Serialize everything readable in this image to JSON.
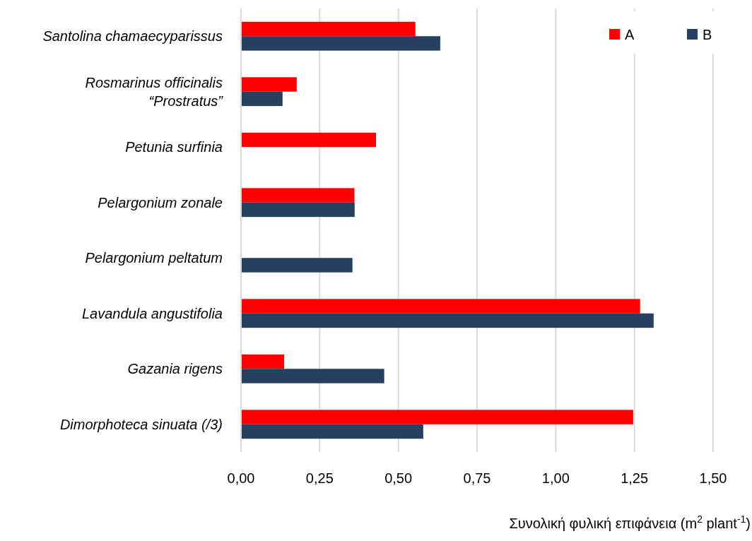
{
  "chart_data": {
    "type": "bar",
    "orientation": "horizontal",
    "xlabel": "Συνολική φυλική επιφάνεια (m$^{2}$ plant$^{-1}$)",
    "categories": [
      "Santolina chamaecyparissus",
      "Rosmarinus officinalis “Prostratus”",
      "Petunia surfinia",
      "Pelargonium zonale",
      "Pelargonium peltatum",
      "Lavandula angustifolia",
      "Gazania rigens",
      "Dimorphoteca sinuata (/3)"
    ],
    "series": [
      {
        "name": "A",
        "color": "#ff0000",
        "values": [
          0.554,
          0.177,
          0.429,
          0.36,
          null,
          1.268,
          0.137,
          1.246
        ]
      },
      {
        "name": "B",
        "color": "#264061",
        "values": [
          0.633,
          0.132,
          null,
          0.361,
          0.354,
          1.311,
          0.455,
          0.579
        ]
      }
    ],
    "xlim": [
      0,
      1.5
    ],
    "xticks": [
      {
        "value": 0,
        "label": "0,00"
      },
      {
        "value": 0.25,
        "label": "0,25"
      },
      {
        "value": 0.5,
        "label": "0,50"
      },
      {
        "value": 0.75,
        "label": "0,75"
      },
      {
        "value": 1,
        "label": "1,00"
      },
      {
        "value": 1.25,
        "label": "1,25"
      },
      {
        "value": 1.5,
        "label": "1,50"
      }
    ],
    "grid": "x",
    "legend": "top right"
  }
}
